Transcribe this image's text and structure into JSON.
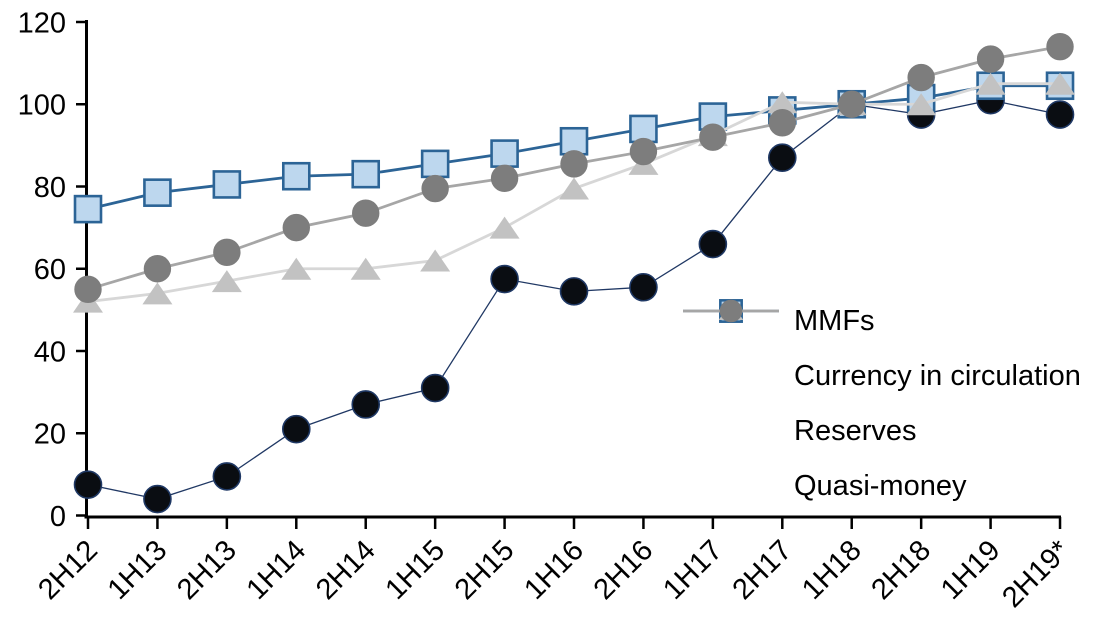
{
  "chart_data": {
    "type": "line",
    "title": "",
    "xlabel": "",
    "ylabel": "",
    "ylim": [
      0,
      120
    ],
    "yticks": [
      0,
      20,
      40,
      60,
      80,
      100,
      120
    ],
    "grid": false,
    "legend_position": "inside-center-right",
    "categories": [
      "2H12",
      "1H13",
      "2H13",
      "1H14",
      "2H14",
      "1H15",
      "2H15",
      "1H16",
      "2H16",
      "1H17",
      "2H17",
      "1H18",
      "2H18",
      "1H19",
      "2H19*"
    ],
    "series": [
      {
        "name": "MMFs",
        "marker": "circle",
        "marker_fill": "#0a0d12",
        "marker_stroke": "#1f3864",
        "line_color": "#203864",
        "values": [
          7.5,
          4,
          9.5,
          21,
          27,
          31,
          57.5,
          54.5,
          55.5,
          66,
          87,
          100,
          97.5,
          101,
          97.5
        ]
      },
      {
        "name": "Currency in circulation",
        "marker": "square",
        "marker_fill": "#bdd7ee",
        "marker_stroke": "#2c6496",
        "line_color": "#2c6496",
        "values": [
          74.5,
          78.5,
          80.5,
          82.5,
          83,
          85.5,
          88,
          91,
          94,
          97,
          98.5,
          100,
          101.5,
          104.5,
          104.5
        ]
      },
      {
        "name": "Reserves",
        "marker": "triangle",
        "marker_fill": "#c2c2c2",
        "marker_stroke": "#c2c2c2",
        "line_color": "#d7d7d7",
        "values": [
          52,
          54,
          57,
          60,
          60,
          62,
          70,
          79.5,
          85.5,
          92.5,
          100.5,
          100,
          100,
          105,
          105
        ]
      },
      {
        "name": "Quasi-money",
        "marker": "circle",
        "marker_fill": "#7d7d7d",
        "marker_stroke": "#7d7d7d",
        "line_color": "#a6a6a6",
        "values": [
          55,
          60,
          64,
          70,
          73.5,
          79.5,
          82,
          85.5,
          88.5,
          92,
          95.5,
          100,
          106.5,
          111,
          114
        ]
      }
    ],
    "axis_color": "#000000",
    "background_color": "#ffffff"
  }
}
